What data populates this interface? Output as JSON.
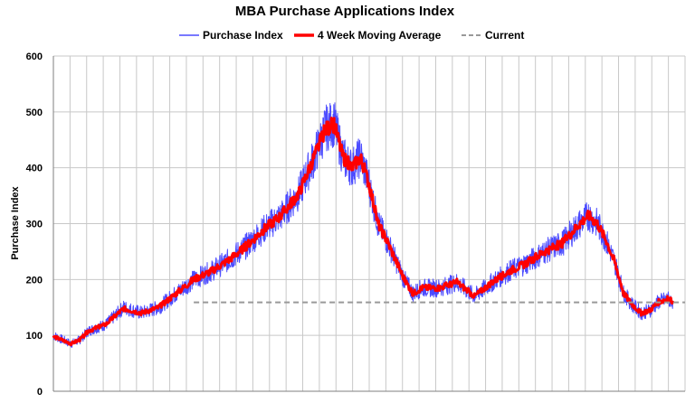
{
  "chart_data": {
    "type": "line",
    "title": "MBA Purchase Applications Index",
    "xlabel": "",
    "ylabel": "Purchase Index",
    "ylim": [
      0,
      600
    ],
    "y_ticks": [
      0,
      100,
      200,
      300,
      400,
      500,
      600
    ],
    "x_range": [
      1990.0,
      2026.0
    ],
    "grid": "on",
    "legend_position": "top",
    "series": [
      {
        "name": "Purchase Index",
        "color": "#4b4bff",
        "style": "solid-thin",
        "points": [
          [
            1990.0,
            100
          ],
          [
            1991.0,
            85
          ],
          [
            1991.5,
            92
          ],
          [
            1992.0,
            108
          ],
          [
            1993.0,
            120
          ],
          [
            1994.0,
            150
          ],
          [
            1995.0,
            140
          ],
          [
            1996.0,
            150
          ],
          [
            1997.0,
            175
          ],
          [
            1998.0,
            200
          ],
          [
            1999.0,
            215
          ],
          [
            2000.0,
            235
          ],
          [
            2001.0,
            260
          ],
          [
            2002.0,
            290
          ],
          [
            2003.0,
            315
          ],
          [
            2004.0,
            355
          ],
          [
            2005.0,
            430
          ],
          [
            2005.5,
            470
          ],
          [
            2006.0,
            480
          ],
          [
            2006.5,
            420
          ],
          [
            2007.0,
            400
          ],
          [
            2007.5,
            420
          ],
          [
            2008.0,
            370
          ],
          [
            2008.5,
            300
          ],
          [
            2009.0,
            270
          ],
          [
            2010.0,
            200
          ],
          [
            2010.5,
            175
          ],
          [
            2011.0,
            185
          ],
          [
            2012.0,
            185
          ],
          [
            2013.0,
            195
          ],
          [
            2014.0,
            170
          ],
          [
            2015.0,
            195
          ],
          [
            2016.0,
            215
          ],
          [
            2017.0,
            230
          ],
          [
            2018.0,
            250
          ],
          [
            2019.0,
            265
          ],
          [
            2020.0,
            300
          ],
          [
            2020.5,
            315
          ],
          [
            2021.0,
            300
          ],
          [
            2021.5,
            270
          ],
          [
            2022.0,
            230
          ],
          [
            2022.5,
            175
          ],
          [
            2023.0,
            155
          ],
          [
            2023.5,
            140
          ],
          [
            2024.0,
            145
          ],
          [
            2024.5,
            160
          ],
          [
            2025.0,
            165
          ],
          [
            2025.3,
            162
          ]
        ]
      },
      {
        "name": "4 Week Moving Average",
        "color": "#ff0000",
        "style": "solid-thick",
        "points": [
          [
            1990.0,
            98
          ],
          [
            1991.0,
            85
          ],
          [
            1991.5,
            92
          ],
          [
            1992.0,
            108
          ],
          [
            1993.0,
            120
          ],
          [
            1994.0,
            148
          ],
          [
            1995.0,
            140
          ],
          [
            1996.0,
            150
          ],
          [
            1997.0,
            175
          ],
          [
            1998.0,
            200
          ],
          [
            1999.0,
            215
          ],
          [
            2000.0,
            235
          ],
          [
            2001.0,
            260
          ],
          [
            2002.0,
            290
          ],
          [
            2003.0,
            315
          ],
          [
            2004.0,
            355
          ],
          [
            2005.0,
            430
          ],
          [
            2005.5,
            468
          ],
          [
            2006.0,
            478
          ],
          [
            2006.5,
            420
          ],
          [
            2007.0,
            400
          ],
          [
            2007.5,
            418
          ],
          [
            2008.0,
            370
          ],
          [
            2008.5,
            300
          ],
          [
            2009.0,
            270
          ],
          [
            2010.0,
            200
          ],
          [
            2010.5,
            175
          ],
          [
            2011.0,
            185
          ],
          [
            2012.0,
            185
          ],
          [
            2013.0,
            195
          ],
          [
            2014.0,
            170
          ],
          [
            2015.0,
            195
          ],
          [
            2016.0,
            215
          ],
          [
            2017.0,
            230
          ],
          [
            2018.0,
            250
          ],
          [
            2019.0,
            265
          ],
          [
            2020.0,
            300
          ],
          [
            2020.5,
            315
          ],
          [
            2021.0,
            300
          ],
          [
            2021.5,
            270
          ],
          [
            2022.0,
            230
          ],
          [
            2022.5,
            175
          ],
          [
            2023.0,
            155
          ],
          [
            2023.5,
            140
          ],
          [
            2024.0,
            145
          ],
          [
            2024.5,
            160
          ],
          [
            2025.0,
            165
          ],
          [
            2025.3,
            162
          ]
        ]
      },
      {
        "name": "Current",
        "color": "#999999",
        "style": "dashed",
        "y": 159,
        "x_start": 1998.0,
        "x_end": 2026.0
      }
    ]
  }
}
